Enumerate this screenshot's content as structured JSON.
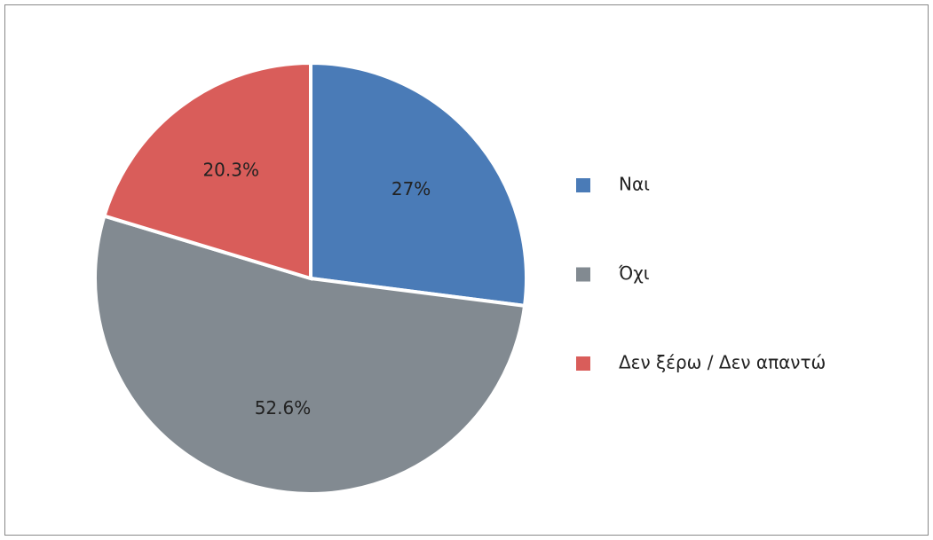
{
  "chart_data": {
    "type": "pie",
    "categories": [
      "Ναι",
      "Όχι",
      "Δεν ξέρω / Δεν απαντώ"
    ],
    "values": [
      27,
      52.6,
      20.3
    ],
    "value_labels": [
      "27%",
      "52.6%",
      "20.3%"
    ],
    "colors": [
      "#4a7bb7",
      "#828a91",
      "#d95d5a"
    ],
    "legend": "right"
  }
}
